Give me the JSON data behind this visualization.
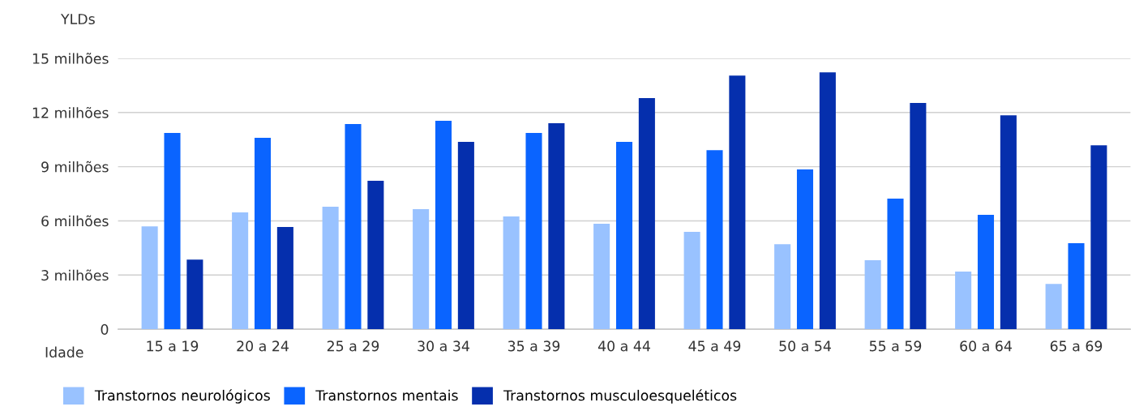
{
  "chart_data": {
    "type": "bar",
    "ylabel": "YLDs",
    "xlabel": "Idade",
    "categories": [
      "15 a 19",
      "20 a 24",
      "25 a 29",
      "30 a 34",
      "35 a 39",
      "40 a 44",
      "45 a 49",
      "50 a 54",
      "55 a 59",
      "60 a 64",
      "65 a 69"
    ],
    "series": [
      {
        "name": "Transtornos neurológicos",
        "color": "#99c2ff",
        "values": [
          5.7,
          6.47,
          6.78,
          6.65,
          6.24,
          5.84,
          5.39,
          4.71,
          3.82,
          3.19,
          2.51
        ]
      },
      {
        "name": "Transtornos mentais",
        "color": "#0a64ff",
        "values": [
          10.87,
          10.6,
          11.36,
          11.54,
          10.87,
          10.37,
          9.92,
          8.85,
          7.23,
          6.33,
          4.76
        ]
      },
      {
        "name": "Transtornos musculoesqueléticos",
        "color": "#052fad",
        "values": [
          3.86,
          5.66,
          8.22,
          10.37,
          11.41,
          12.8,
          14.05,
          14.23,
          12.53,
          11.85,
          10.19
        ]
      }
    ],
    "ylim": [
      0,
      15
    ],
    "yticks": [
      {
        "value": 0,
        "label": "0"
      },
      {
        "value": 3,
        "label": "3 milhões"
      },
      {
        "value": 6,
        "label": "6 milhões"
      },
      {
        "value": 9,
        "label": "9 milhões"
      },
      {
        "value": 12,
        "label": "12 milhões"
      },
      {
        "value": 15,
        "label": "15 milhões"
      }
    ],
    "grid": "y",
    "legend": "bottom"
  }
}
